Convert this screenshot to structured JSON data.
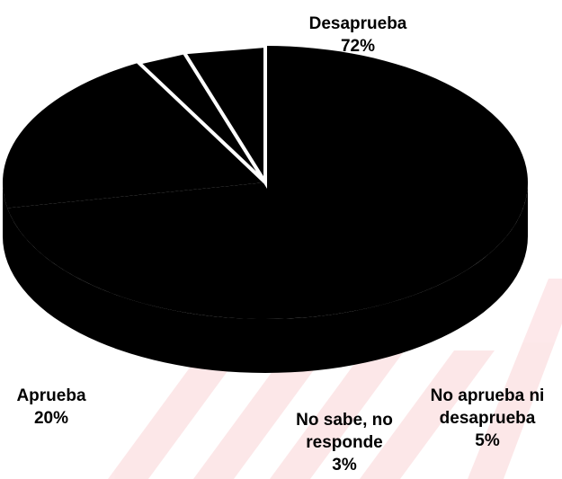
{
  "chart_data": {
    "type": "pie",
    "style": "3d",
    "slices": [
      {
        "label": "Desaprueba",
        "value": 72,
        "value_label": "72%"
      },
      {
        "label": "Aprueba",
        "value": 20,
        "value_label": "20%"
      },
      {
        "label": "No sabe, no responde",
        "label_lines": [
          "No sabe, no",
          "responde"
        ],
        "value": 3,
        "value_label": "3%"
      },
      {
        "label": "No aprueba ni desaprueba",
        "label_lines": [
          "No aprueba ni",
          "desaprueba"
        ],
        "value": 5,
        "value_label": "5%"
      }
    ],
    "colors": {
      "fill": "#000000",
      "outline": "#ffffff",
      "watermark": "#e60012"
    }
  }
}
